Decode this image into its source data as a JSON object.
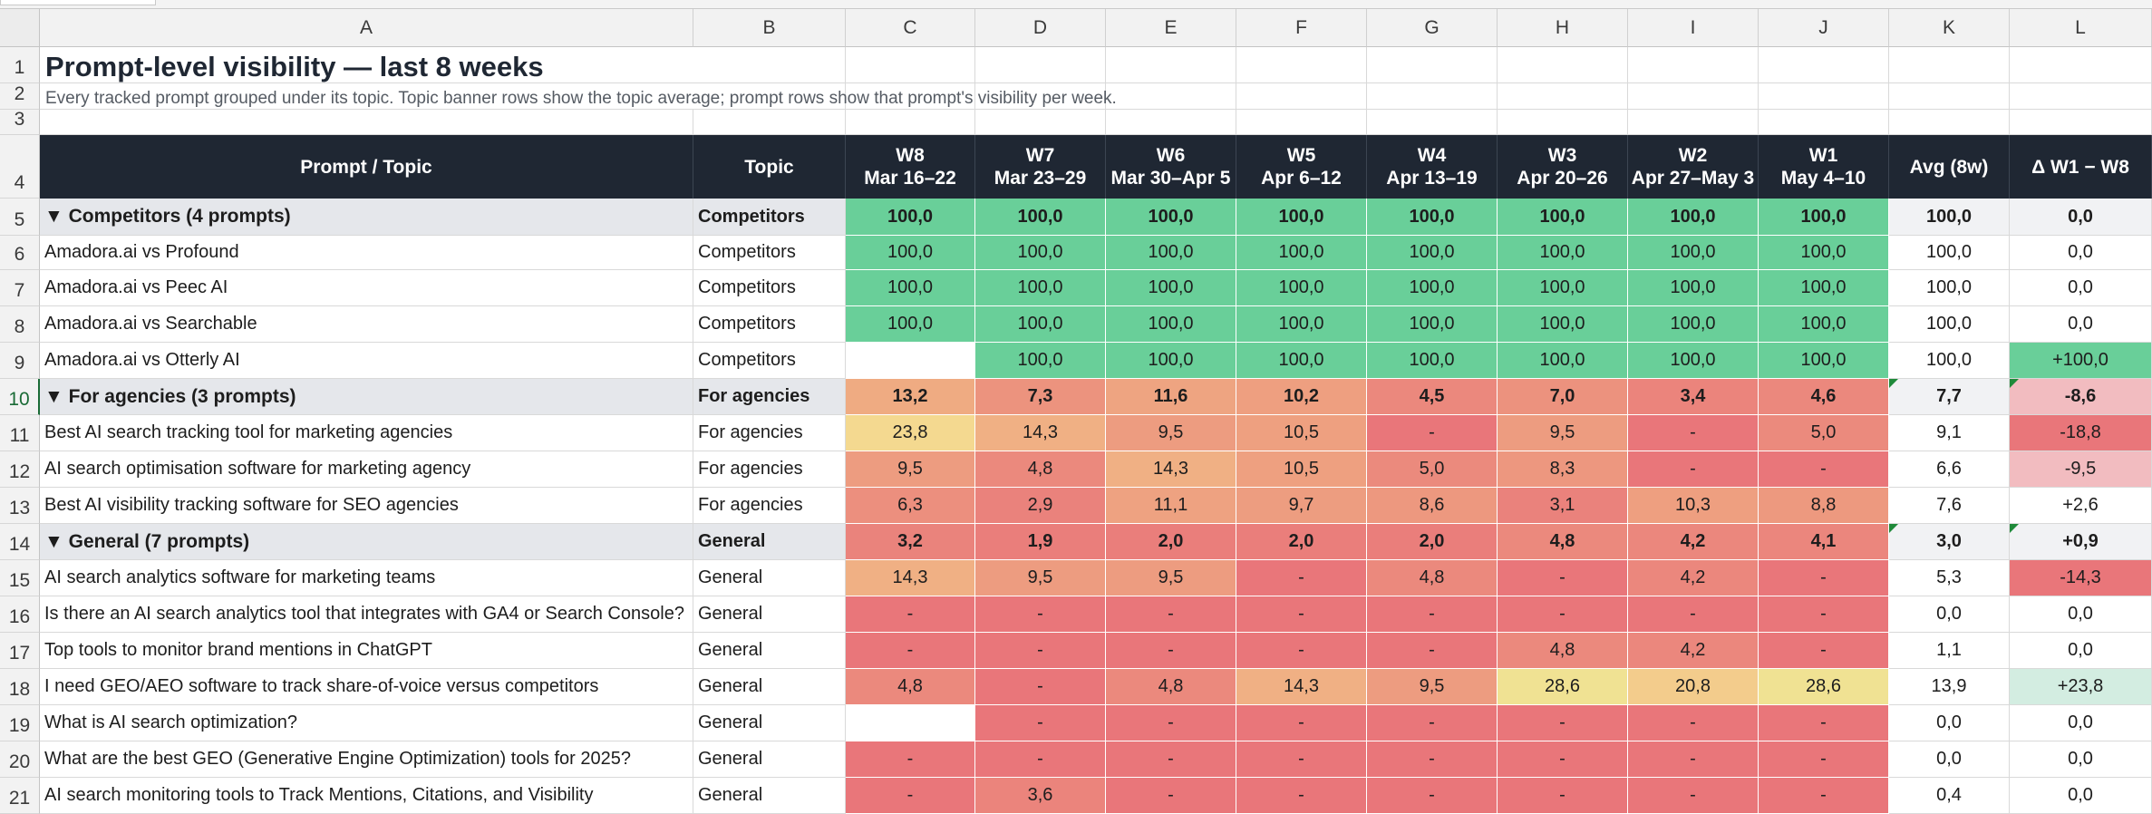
{
  "columns": [
    "A",
    "B",
    "C",
    "D",
    "E",
    "F",
    "G",
    "H",
    "I",
    "J",
    "K",
    "L"
  ],
  "row_numbers": [
    "1",
    "2",
    "3",
    "4",
    "5",
    "6",
    "7",
    "8",
    "9",
    "10",
    "11",
    "12",
    "13",
    "14",
    "15",
    "16",
    "17",
    "18",
    "19",
    "20",
    "21"
  ],
  "sheet_title": "Prompt-level visibility — last 8 weeks",
  "sheet_subtitle": "Every tracked prompt grouped under its topic. Topic banner rows show the topic average; prompt rows show that prompt's visibility per week.",
  "header": {
    "prompt_topic": "Prompt / Topic",
    "topic": "Topic",
    "weeks": [
      {
        "week": "W8",
        "range": "Mar 16–22"
      },
      {
        "week": "W7",
        "range": "Mar 23–29"
      },
      {
        "week": "W6",
        "range": "Mar 30–Apr 5"
      },
      {
        "week": "W5",
        "range": "Apr 6–12"
      },
      {
        "week": "W4",
        "range": "Apr 13–19"
      },
      {
        "week": "W3",
        "range": "Apr 20–26"
      },
      {
        "week": "W2",
        "range": "Apr 27–May 3"
      },
      {
        "week": "W1",
        "range": "May 4–10"
      }
    ],
    "avg": "Avg (8w)",
    "delta": "Δ W1 − W8"
  },
  "colors": {
    "header_bg": "#1f2733",
    "banner_bg": "#e5e7eb",
    "scale_green": "#69cf99",
    "scale_yellow": "#f5e393",
    "scale_orange": "#efaa82",
    "scale_red": "#e9767a",
    "delta_positive_strong": "#69cf99",
    "delta_positive_light": "#d3ede1",
    "delta_negative_strong": "#e9767a",
    "delta_negative_light": "#f2bcc0",
    "neutral_gray": "#f1f2f4"
  },
  "rows": [
    {
      "row": "5",
      "type": "banner",
      "label": "▼ Competitors   (4 prompts)",
      "topic": "Competitors",
      "values": [
        "100,0",
        "100,0",
        "100,0",
        "100,0",
        "100,0",
        "100,0",
        "100,0",
        "100,0"
      ],
      "scale": [
        100,
        100,
        100,
        100,
        100,
        100,
        100,
        100
      ],
      "avg": "100,0",
      "delta": "0,0",
      "delta_value": 0
    },
    {
      "row": "6",
      "type": "prompt",
      "label": "Amadora.ai vs Profound",
      "topic": "Competitors",
      "values": [
        "100,0",
        "100,0",
        "100,0",
        "100,0",
        "100,0",
        "100,0",
        "100,0",
        "100,0"
      ],
      "scale": [
        100,
        100,
        100,
        100,
        100,
        100,
        100,
        100
      ],
      "avg": "100,0",
      "delta": "0,0",
      "delta_value": 0
    },
    {
      "row": "7",
      "type": "prompt",
      "label": "Amadora.ai vs Peec AI",
      "topic": "Competitors",
      "values": [
        "100,0",
        "100,0",
        "100,0",
        "100,0",
        "100,0",
        "100,0",
        "100,0",
        "100,0"
      ],
      "scale": [
        100,
        100,
        100,
        100,
        100,
        100,
        100,
        100
      ],
      "avg": "100,0",
      "delta": "0,0",
      "delta_value": 0
    },
    {
      "row": "8",
      "type": "prompt",
      "label": "Amadora.ai vs Searchable",
      "topic": "Competitors",
      "values": [
        "100,0",
        "100,0",
        "100,0",
        "100,0",
        "100,0",
        "100,0",
        "100,0",
        "100,0"
      ],
      "scale": [
        100,
        100,
        100,
        100,
        100,
        100,
        100,
        100
      ],
      "avg": "100,0",
      "delta": "0,0",
      "delta_value": 0
    },
    {
      "row": "9",
      "type": "prompt",
      "label": "Amadora.ai vs Otterly AI",
      "topic": "Competitors",
      "values": [
        "",
        "100,0",
        "100,0",
        "100,0",
        "100,0",
        "100,0",
        "100,0",
        "100,0"
      ],
      "scale": [
        null,
        100,
        100,
        100,
        100,
        100,
        100,
        100
      ],
      "avg": "100,0",
      "delta": "+100,0",
      "delta_value": 100
    },
    {
      "row": "10",
      "type": "banner",
      "label": "▼ For agencies   (3 prompts)",
      "topic": "For agencies",
      "values": [
        "13,2",
        "7,3",
        "11,6",
        "10,2",
        "4,5",
        "7,0",
        "3,4",
        "4,6"
      ],
      "scale": [
        13.2,
        7.3,
        11.6,
        10.2,
        4.5,
        7.0,
        3.4,
        4.6
      ],
      "avg": "7,7",
      "delta": "-8,6",
      "delta_value": -8.6,
      "flagged": true
    },
    {
      "row": "11",
      "type": "prompt",
      "label": "Best AI search tracking tool for marketing agencies",
      "topic": "For agencies",
      "values": [
        "23,8",
        "14,3",
        "9,5",
        "10,5",
        "-",
        "9,5",
        "-",
        "5,0"
      ],
      "scale": [
        23.8,
        14.3,
        9.5,
        10.5,
        0,
        9.5,
        0,
        5.0
      ],
      "avg": "9,1",
      "delta": "-18,8",
      "delta_value": -18.8
    },
    {
      "row": "12",
      "type": "prompt",
      "label": "AI search optimisation software for marketing agency",
      "topic": "For agencies",
      "values": [
        "9,5",
        "4,8",
        "14,3",
        "10,5",
        "5,0",
        "8,3",
        "-",
        "-"
      ],
      "scale": [
        9.5,
        4.8,
        14.3,
        10.5,
        5.0,
        8.3,
        0,
        0
      ],
      "avg": "6,6",
      "delta": "-9,5",
      "delta_value": -9.5
    },
    {
      "row": "13",
      "type": "prompt",
      "label": "Best AI visibility tracking software for SEO agencies",
      "topic": "For agencies",
      "values": [
        "6,3",
        "2,9",
        "11,1",
        "9,7",
        "8,6",
        "3,1",
        "10,3",
        "8,8"
      ],
      "scale": [
        6.3,
        2.9,
        11.1,
        9.7,
        8.6,
        3.1,
        10.3,
        8.8
      ],
      "avg": "7,6",
      "delta": "+2,6",
      "delta_value": 2.6
    },
    {
      "row": "14",
      "type": "banner",
      "label": "▼ General   (7 prompts)",
      "topic": "General",
      "values": [
        "3,2",
        "1,9",
        "2,0",
        "2,0",
        "2,0",
        "4,8",
        "4,2",
        "4,1"
      ],
      "scale": [
        3.2,
        1.9,
        2.0,
        2.0,
        2.0,
        4.8,
        4.2,
        4.1
      ],
      "avg": "3,0",
      "delta": "+0,9",
      "delta_value": 0.9,
      "flagged": true
    },
    {
      "row": "15",
      "type": "prompt",
      "label": "AI search analytics software for marketing teams",
      "topic": "General",
      "values": [
        "14,3",
        "9,5",
        "9,5",
        "-",
        "4,8",
        "-",
        "4,2",
        "-"
      ],
      "scale": [
        14.3,
        9.5,
        9.5,
        0,
        4.8,
        0,
        4.2,
        0
      ],
      "avg": "5,3",
      "delta": "-14,3",
      "delta_value": -14.3
    },
    {
      "row": "16",
      "type": "prompt",
      "label": "Is there an AI search analytics tool that integrates with GA4 or Search Console?",
      "topic": "General",
      "values": [
        "-",
        "-",
        "-",
        "-",
        "-",
        "-",
        "-",
        "-"
      ],
      "scale": [
        0,
        0,
        0,
        0,
        0,
        0,
        0,
        0
      ],
      "avg": "0,0",
      "delta": "0,0",
      "delta_value": 0
    },
    {
      "row": "17",
      "type": "prompt",
      "label": "Top tools to monitor brand mentions in ChatGPT",
      "topic": "General",
      "values": [
        "-",
        "-",
        "-",
        "-",
        "-",
        "4,8",
        "4,2",
        "-"
      ],
      "scale": [
        0,
        0,
        0,
        0,
        0,
        4.8,
        4.2,
        0
      ],
      "avg": "1,1",
      "delta": "0,0",
      "delta_value": 0
    },
    {
      "row": "18",
      "type": "prompt",
      "label": "I need GEO/AEO software to track share-of-voice versus competitors",
      "topic": "General",
      "values": [
        "4,8",
        "-",
        "4,8",
        "14,3",
        "9,5",
        "28,6",
        "20,8",
        "28,6"
      ],
      "scale": [
        4.8,
        0,
        4.8,
        14.3,
        9.5,
        28.6,
        20.8,
        28.6
      ],
      "avg": "13,9",
      "delta": "+23,8",
      "delta_value": 23.8
    },
    {
      "row": "19",
      "type": "prompt",
      "label": "What is AI search optimization?",
      "topic": "General",
      "values": [
        "",
        "-",
        "-",
        "-",
        "-",
        "-",
        "-",
        "-"
      ],
      "scale": [
        null,
        0,
        0,
        0,
        0,
        0,
        0,
        0
      ],
      "avg": "0,0",
      "delta": "0,0",
      "delta_value": 0
    },
    {
      "row": "20",
      "type": "prompt",
      "label": "What are the best GEO (Generative Engine Optimization) tools for 2025?",
      "topic": "General",
      "values": [
        "-",
        "-",
        "-",
        "-",
        "-",
        "-",
        "-",
        "-"
      ],
      "scale": [
        0,
        0,
        0,
        0,
        0,
        0,
        0,
        0
      ],
      "avg": "0,0",
      "delta": "0,0",
      "delta_value": 0
    },
    {
      "row": "21",
      "type": "prompt",
      "label": "AI search monitoring tools to Track Mentions, Citations, and Visibility",
      "topic": "General",
      "values": [
        "-",
        "3,6",
        "-",
        "-",
        "-",
        "-",
        "-",
        "-"
      ],
      "scale": [
        0,
        3.6,
        0,
        0,
        0,
        0,
        0,
        0
      ],
      "avg": "0,4",
      "delta": "0,0",
      "delta_value": 0
    }
  ]
}
